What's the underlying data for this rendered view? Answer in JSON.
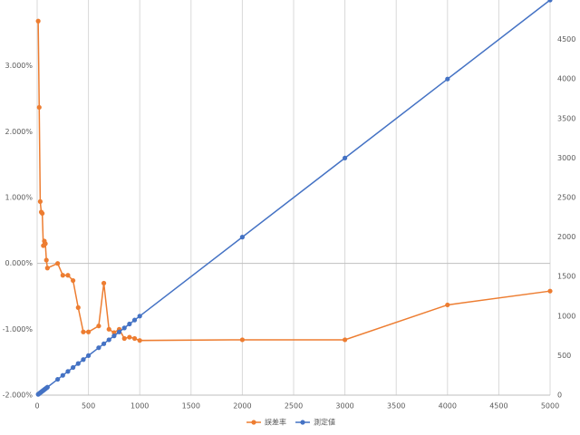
{
  "chart_data": {
    "type": "line",
    "x": [
      10,
      20,
      30,
      40,
      50,
      60,
      70,
      80,
      90,
      100,
      200,
      250,
      300,
      350,
      400,
      450,
      500,
      600,
      650,
      700,
      750,
      800,
      850,
      900,
      950,
      1000,
      2000,
      3000,
      4000,
      5000
    ],
    "series": [
      {
        "name": "誤差率",
        "color": "#ed7d31",
        "axis": "y",
        "values": [
          3.68,
          2.37,
          0.94,
          0.78,
          0.76,
          0.27,
          0.34,
          0.3,
          0.05,
          -0.07,
          0.0,
          -0.18,
          -0.18,
          -0.26,
          -0.67,
          -1.04,
          -1.04,
          -0.95,
          -0.3,
          -1.0,
          -1.05,
          -1.0,
          -1.14,
          -1.12,
          -1.14,
          -1.17,
          -1.16,
          -1.16,
          -0.63,
          -0.42
        ]
      },
      {
        "name": "測定値",
        "color": "#4472c4",
        "axis": "y2",
        "values": [
          10,
          20,
          30,
          40,
          50,
          60,
          70,
          80,
          90,
          100,
          200,
          250,
          300,
          350,
          400,
          450,
          500,
          600,
          650,
          700,
          750,
          800,
          850,
          900,
          950,
          1000,
          2000,
          3000,
          4000,
          5000
        ]
      }
    ],
    "xlim": [
      0,
      5000
    ],
    "xticks": [
      0,
      500,
      1000,
      1500,
      2000,
      2500,
      3000,
      3500,
      4000,
      4500,
      5000
    ],
    "ylim": [
      -2,
      4
    ],
    "yticks": [
      {
        "value": -2,
        "label": "-2.000%"
      },
      {
        "value": -1,
        "label": "-1.000%"
      },
      {
        "value": 0,
        "label": "0.000%"
      },
      {
        "value": 1,
        "label": "1.000%"
      },
      {
        "value": 2,
        "label": "2.000%"
      },
      {
        "value": 3,
        "label": "3.000%"
      }
    ],
    "y2lim": [
      0,
      5000
    ],
    "y2ticks": [
      0,
      500,
      1000,
      1500,
      2000,
      2500,
      3000,
      3500,
      4000,
      4500
    ],
    "grid": "x",
    "legend": "bottom"
  }
}
